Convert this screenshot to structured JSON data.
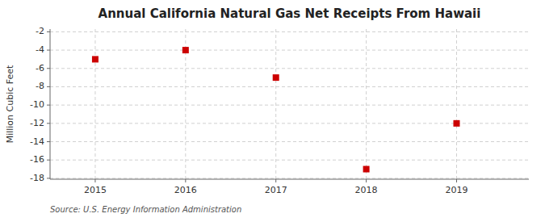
{
  "chart_data": {
    "type": "scatter",
    "title": "Annual California Natural Gas Net Receipts From Hawaii",
    "y_label": "Million Cubic Feet",
    "annotations": [
      "Source: U.S. Energy Information Administration"
    ],
    "x": [
      2015,
      2016,
      2017,
      2018,
      2019
    ],
    "values": [
      -5,
      -4,
      -7,
      -17,
      -12
    ],
    "xlim": [
      2014.5,
      2019.8
    ],
    "ylim": [
      -18.1,
      -1.7
    ],
    "xticks": [
      2015,
      2016,
      2017,
      2018,
      2019
    ],
    "yticks": [
      -2,
      -4,
      -6,
      -8,
      -10,
      -12,
      -14,
      -16,
      -18
    ],
    "color": "#cc0000",
    "marker": "square",
    "grid": true
  }
}
